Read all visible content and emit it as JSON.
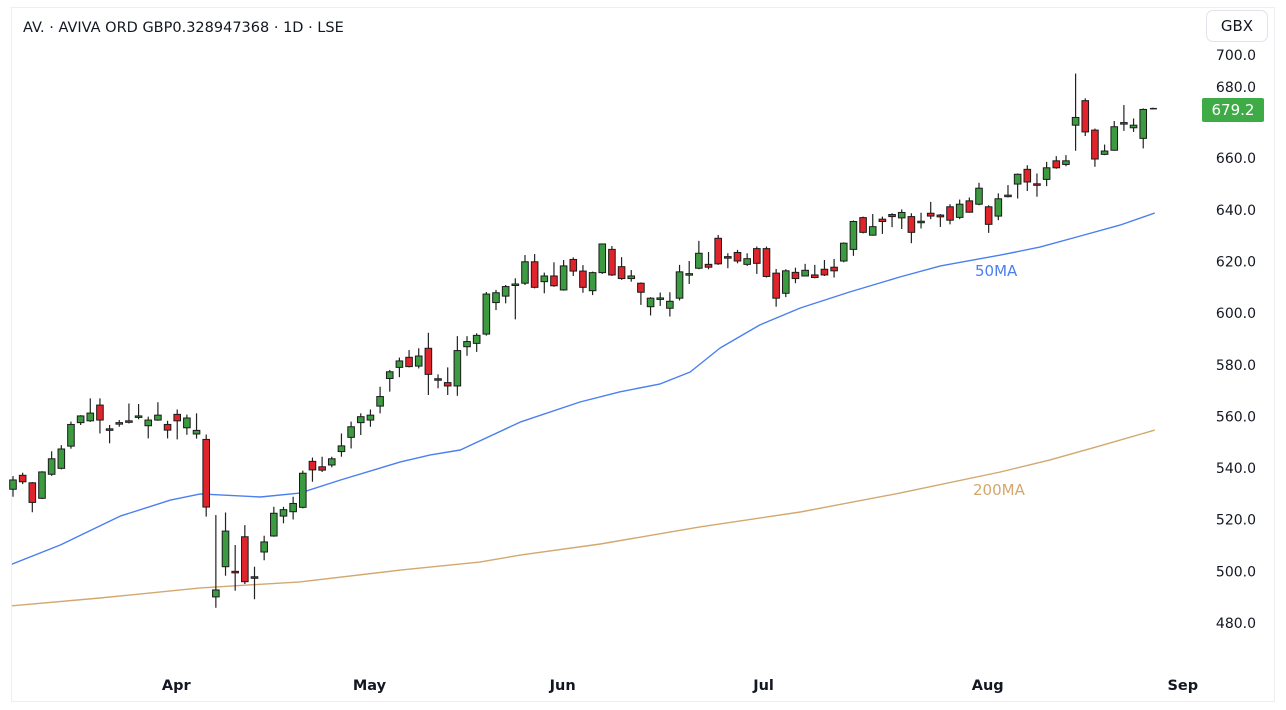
{
  "header": {
    "title": "AV. · AVIVA ORD GBP0.328947368 · 1D · LSE",
    "currency_button": "GBX"
  },
  "last_price": "679.2",
  "colors": {
    "up": "#3c9a40",
    "down": "#e0242b",
    "wick": "#222222",
    "ma50": "#4a7ff0",
    "ma200": "#d2a86e",
    "price_tag": "#3fab47"
  },
  "chart_data": {
    "type": "candlestick",
    "title": "AV. · AVIVA ORD GBP0.328947368 · 1D · LSE",
    "ylabel": "GBX",
    "ylim": [
      480,
      700
    ],
    "y_ticks": [
      "480.0",
      "500.0",
      "520.0",
      "540.0",
      "560.0",
      "580.0",
      "600.0",
      "620.0",
      "640.0",
      "660.0",
      "680.0",
      "700.0"
    ],
    "y_tick_values": [
      480,
      500,
      520,
      540,
      560,
      580,
      600,
      620,
      640,
      660,
      680,
      700
    ],
    "x_ticks": [
      {
        "label": "Apr",
        "index": 16.9
      },
      {
        "label": "May",
        "index": 36.9
      },
      {
        "label": "Jun",
        "index": 56.9
      },
      {
        "label": "Jul",
        "index": 77.7
      },
      {
        "label": "Aug",
        "index": 100.9
      },
      {
        "label": "Sep",
        "index": 121.1
      }
    ],
    "ohlc_fields": [
      "open",
      "high",
      "low",
      "close"
    ],
    "candles": [
      [
        531.8,
        536.9,
        528.9,
        535.4
      ],
      [
        537.2,
        538.2,
        533.8,
        534.7
      ],
      [
        534.3,
        534.6,
        522.9,
        526.7
      ],
      [
        528.3,
        538.8,
        528.0,
        538.5
      ],
      [
        537.6,
        546.5,
        537.0,
        543.6
      ],
      [
        539.9,
        548.9,
        539.5,
        547.4
      ],
      [
        548.5,
        558.0,
        547.5,
        556.9
      ],
      [
        557.6,
        560.5,
        556.7,
        560.2
      ],
      [
        558.3,
        567.0,
        557.9,
        561.3
      ],
      [
        564.4,
        567.0,
        553.4,
        558.6
      ],
      [
        555.2,
        556.7,
        549.6,
        555.0
      ],
      [
        557.4,
        558.6,
        556.0,
        557.6
      ],
      [
        558.1,
        565.0,
        557.3,
        558.3
      ],
      [
        560.0,
        564.8,
        558.9,
        560.2
      ],
      [
        556.4,
        559.9,
        551.5,
        558.6
      ],
      [
        558.6,
        565.5,
        558.3,
        560.5
      ],
      [
        556.9,
        558.3,
        551.5,
        554.7
      ],
      [
        560.8,
        562.7,
        551.1,
        558.3
      ],
      [
        555.6,
        560.7,
        552.9,
        559.4
      ],
      [
        553.2,
        561.2,
        551.4,
        554.6
      ],
      [
        551.1,
        553.0,
        521.2,
        524.9
      ],
      [
        490.1,
        521.8,
        485.9,
        492.8
      ],
      [
        501.8,
        522.8,
        498.3,
        515.6
      ],
      [
        500.0,
        510.2,
        492.5,
        499.9
      ],
      [
        513.4,
        517.9,
        495.1,
        496.0
      ],
      [
        497.9,
        501.8,
        489.2,
        497.8
      ],
      [
        507.5,
        513.8,
        504.3,
        511.4
      ],
      [
        513.7,
        525.0,
        513.4,
        522.5
      ],
      [
        521.4,
        525.0,
        518.6,
        523.9
      ],
      [
        523.1,
        528.9,
        520.1,
        526.3
      ],
      [
        524.8,
        539.0,
        524.4,
        538.0
      ],
      [
        542.6,
        544.1,
        534.7,
        539.3
      ],
      [
        540.5,
        544.4,
        538.5,
        539.2
      ],
      [
        541.2,
        544.4,
        540.3,
        543.6
      ],
      [
        546.4,
        553.4,
        544.4,
        548.6
      ],
      [
        551.9,
        558.0,
        547.6,
        556.0
      ],
      [
        557.6,
        561.2,
        552.8,
        559.9
      ],
      [
        558.6,
        562.7,
        556.0,
        560.5
      ],
      [
        564.0,
        571.5,
        561.2,
        567.7
      ],
      [
        574.7,
        578.0,
        569.6,
        577.3
      ],
      [
        579.0,
        582.8,
        575.2,
        581.5
      ],
      [
        582.9,
        585.7,
        579.0,
        579.3
      ],
      [
        579.5,
        586.4,
        578.6,
        583.4
      ],
      [
        586.4,
        592.4,
        568.3,
        576.3
      ],
      [
        574.6,
        576.3,
        570.9,
        574.1
      ],
      [
        573.1,
        579.0,
        568.3,
        571.8
      ],
      [
        571.8,
        591.1,
        568.0,
        585.5
      ],
      [
        587.0,
        591.1,
        583.5,
        589.0
      ],
      [
        588.3,
        592.2,
        585.0,
        591.4
      ],
      [
        591.9,
        608.2,
        591.3,
        607.4
      ],
      [
        604.1,
        609.0,
        601.2,
        607.9
      ],
      [
        606.6,
        610.9,
        603.8,
        610.3
      ],
      [
        611.1,
        613.5,
        597.6,
        611.3
      ],
      [
        611.6,
        622.5,
        610.9,
        619.9
      ],
      [
        619.9,
        622.9,
        609.6,
        610.0
      ],
      [
        612.2,
        615.7,
        607.7,
        614.4
      ],
      [
        614.4,
        619.7,
        610.2,
        610.6
      ],
      [
        609.0,
        620.6,
        608.7,
        618.3
      ],
      [
        620.8,
        621.6,
        614.4,
        616.3
      ],
      [
        616.3,
        618.6,
        607.9,
        610.0
      ],
      [
        608.7,
        616.1,
        607.0,
        615.7
      ],
      [
        615.7,
        627.0,
        615.2,
        626.8
      ],
      [
        624.7,
        626.0,
        614.4,
        614.8
      ],
      [
        618.0,
        621.7,
        612.9,
        613.4
      ],
      [
        613.4,
        616.7,
        612.2,
        614.4
      ],
      [
        611.6,
        611.9,
        603.2,
        608.1
      ],
      [
        602.5,
        606.2,
        599.1,
        605.8
      ],
      [
        605.8,
        608.0,
        602.8,
        605.9
      ],
      [
        601.9,
        608.1,
        598.7,
        604.6
      ],
      [
        605.8,
        618.7,
        604.9,
        616.0
      ],
      [
        615.2,
        620.2,
        611.3,
        615.3
      ],
      [
        617.4,
        628.0,
        617.0,
        623.2
      ],
      [
        618.9,
        623.7,
        617.0,
        617.8
      ],
      [
        629.0,
        630.3,
        618.7,
        619.1
      ],
      [
        621.9,
        623.2,
        617.4,
        621.3
      ],
      [
        623.5,
        624.5,
        619.3,
        620.2
      ],
      [
        618.9,
        623.2,
        618.3,
        621.1
      ],
      [
        625.0,
        625.8,
        615.2,
        619.3
      ],
      [
        625.0,
        625.8,
        613.8,
        614.2
      ],
      [
        615.5,
        617.1,
        602.5,
        605.8
      ],
      [
        607.7,
        617.0,
        606.2,
        616.4
      ],
      [
        615.8,
        617.6,
        611.6,
        613.4
      ],
      [
        614.4,
        619.1,
        614.2,
        616.6
      ],
      [
        614.8,
        618.7,
        613.5,
        613.8
      ],
      [
        617.0,
        620.6,
        614.4,
        614.8
      ],
      [
        617.8,
        621.0,
        613.8,
        616.4
      ],
      [
        620.2,
        627.4,
        619.7,
        627.1
      ],
      [
        624.7,
        635.9,
        622.2,
        635.5
      ],
      [
        637.0,
        637.4,
        630.9,
        631.3
      ],
      [
        630.2,
        638.4,
        630.0,
        633.5
      ],
      [
        636.4,
        637.4,
        630.7,
        635.5
      ],
      [
        638.2,
        638.7,
        633.3,
        637.4
      ],
      [
        636.9,
        640.2,
        632.6,
        639.0
      ],
      [
        637.4,
        638.7,
        627.1,
        631.3
      ],
      [
        635.1,
        638.9,
        632.8,
        635.6
      ],
      [
        638.7,
        643.1,
        636.4,
        637.6
      ],
      [
        638.0,
        638.4,
        633.4,
        637.3
      ],
      [
        641.2,
        642.2,
        634.4,
        636.0
      ],
      [
        637.1,
        644.0,
        636.4,
        642.2
      ],
      [
        643.5,
        644.8,
        638.9,
        639.1
      ],
      [
        642.2,
        650.5,
        641.8,
        648.4
      ],
      [
        641.2,
        641.8,
        631.1,
        634.4
      ],
      [
        637.6,
        646.4,
        636.0,
        644.3
      ],
      [
        645.6,
        649.6,
        644.8,
        645.7
      ],
      [
        650.0,
        654.1,
        644.4,
        653.8
      ],
      [
        655.7,
        657.3,
        647.3,
        650.8
      ],
      [
        650.1,
        654.1,
        645.1,
        650.0
      ],
      [
        651.8,
        658.6,
        649.2,
        656.3
      ],
      [
        659.0,
        660.8,
        655.9,
        656.3
      ],
      [
        657.6,
        661.2,
        656.9,
        659.0
      ],
      [
        672.8,
        692.8,
        662.9,
        675.8
      ],
      [
        682.3,
        683.2,
        668.6,
        670.2
      ],
      [
        670.9,
        671.5,
        656.7,
        659.7
      ],
      [
        661.5,
        665.3,
        661.2,
        662.8
      ],
      [
        663.1,
        674.4,
        662.9,
        672.2
      ],
      [
        673.7,
        680.6,
        670.6,
        673.8
      ],
      [
        671.8,
        675.4,
        670.2,
        672.8
      ],
      [
        667.7,
        679.3,
        663.8,
        678.9
      ],
      [
        679.2,
        679.6,
        678.9,
        679.2
      ]
    ],
    "series": [
      {
        "name": "50MA",
        "label": "50MA",
        "points": [
          [
            -0.3,
            502.5
          ],
          [
            4.9,
            510.2
          ],
          [
            11.1,
            521.4
          ],
          [
            16.3,
            527.6
          ],
          [
            19.4,
            530.0
          ],
          [
            25.6,
            528.8
          ],
          [
            29.7,
            530.3
          ],
          [
            33.9,
            535.4
          ],
          [
            40.1,
            542.4
          ],
          [
            43.2,
            545.1
          ],
          [
            46.3,
            547.0
          ],
          [
            52.5,
            557.8
          ],
          [
            58.7,
            565.6
          ],
          [
            62.8,
            569.5
          ],
          [
            67.0,
            572.6
          ],
          [
            70.1,
            577.2
          ],
          [
            73.2,
            586.5
          ],
          [
            77.3,
            595.4
          ],
          [
            81.5,
            602.0
          ],
          [
            86.6,
            608.2
          ],
          [
            91.8,
            614.0
          ],
          [
            96.0,
            618.3
          ],
          [
            102.2,
            622.5
          ],
          [
            106.3,
            625.6
          ],
          [
            110.5,
            629.9
          ],
          [
            114.6,
            634.1
          ],
          [
            118.2,
            638.8
          ]
        ]
      },
      {
        "name": "200MA",
        "label": "200MA",
        "points": [
          [
            -0.3,
            486.6
          ],
          [
            9.0,
            489.7
          ],
          [
            19.4,
            493.6
          ],
          [
            29.7,
            495.9
          ],
          [
            40.1,
            500.5
          ],
          [
            48.3,
            503.6
          ],
          [
            52.5,
            506.3
          ],
          [
            60.8,
            510.6
          ],
          [
            71.1,
            517.2
          ],
          [
            81.5,
            523.0
          ],
          [
            91.8,
            530.3
          ],
          [
            102.2,
            538.5
          ],
          [
            107.3,
            543.1
          ],
          [
            112.5,
            548.6
          ],
          [
            118.2,
            554.7
          ]
        ]
      }
    ],
    "grid": false,
    "legend": "inline labels near right end of lines"
  }
}
